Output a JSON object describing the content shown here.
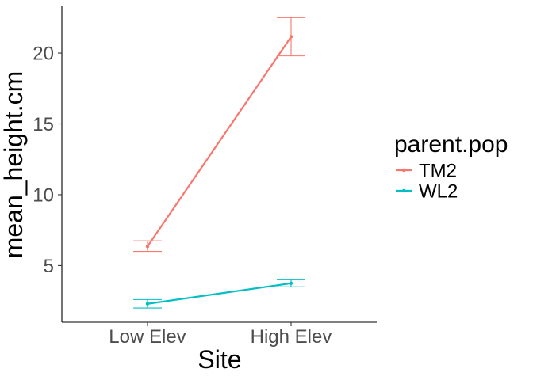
{
  "chart_data": {
    "type": "line",
    "categories": [
      "Low Elev",
      "High Elev"
    ],
    "xlabel": "Site",
    "ylabel": "mean_height.cm",
    "ylim": [
      1.0,
      23.3
    ],
    "yticks": [
      5,
      10,
      15,
      20
    ],
    "grid": false,
    "legend": {
      "title": "parent.pop",
      "position": "right"
    },
    "series": [
      {
        "name": "TM2",
        "color": "#F8766D",
        "values": [
          6.35,
          21.15
        ],
        "error_low": [
          6.0,
          19.8
        ],
        "error_high": [
          6.75,
          22.5
        ]
      },
      {
        "name": "WL2",
        "color": "#00BFC4",
        "values": [
          2.3,
          3.75
        ],
        "error_low": [
          2.0,
          3.5
        ],
        "error_high": [
          2.6,
          4.0
        ]
      }
    ]
  }
}
